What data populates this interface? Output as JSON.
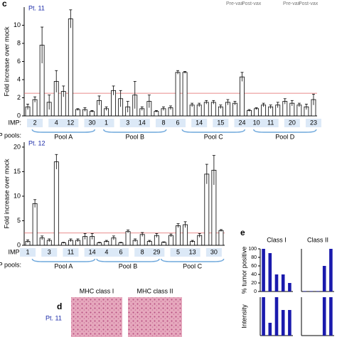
{
  "panel_labels": [
    "c",
    "d",
    "e"
  ],
  "vax_labels": [
    "Pre-vax",
    "Post-vax"
  ],
  "image_panel": {
    "titles": [
      "MHC class I",
      "MHC class II"
    ],
    "row_label": "Pt. 11"
  },
  "chart_data": [
    {
      "type": "bar",
      "title": "Pt. 11",
      "y_label": "Fold increase over mock",
      "row_labels": [
        "IMP:",
        "ASP pools:"
      ],
      "color": "#ffffff",
      "edge": "#000000",
      "ref_line": 2.5,
      "ref_color": "#e06666",
      "group_color": "#dce9f7",
      "ylim": [
        0,
        12
      ],
      "yticks": [
        0,
        2,
        4,
        6,
        8,
        10
      ],
      "values": [
        1.0,
        1.8,
        7.8,
        1.5,
        3.8,
        2.7,
        10.7,
        0.7,
        0.7,
        0.5,
        1.7,
        0.8,
        2.8,
        1.9,
        1.0,
        2.3,
        0.8,
        1.6,
        0.5,
        0.8,
        0.9,
        4.8,
        4.8,
        1.2,
        1.2,
        1.5,
        1.5,
        1.0,
        1.5,
        1.4,
        4.3,
        0.6,
        0.8,
        1.2,
        1.0,
        1.2,
        1.6,
        1.4,
        1.2,
        1.0,
        1.8
      ],
      "errors": [
        0.3,
        0.3,
        2.0,
        0.8,
        1.2,
        0.6,
        1.0,
        0.1,
        0.2,
        0.1,
        0.5,
        0.2,
        0.5,
        0.9,
        0.6,
        1.5,
        0.2,
        0.7,
        0.1,
        0.2,
        0.2,
        0.2,
        0.1,
        0.2,
        0.2,
        0.2,
        0.2,
        0.2,
        0.3,
        0.2,
        0.5,
        0.1,
        0.1,
        0.2,
        0.2,
        0.3,
        0.3,
        0.3,
        0.2,
        0.3,
        0.6
      ],
      "categories": [
        null,
        "2",
        null,
        null,
        "4",
        null,
        "12",
        null,
        null,
        "30",
        null,
        "1",
        null,
        null,
        "3",
        null,
        "14",
        null,
        null,
        "8",
        null,
        "6",
        null,
        null,
        "14",
        null,
        null,
        "15",
        null,
        null,
        "24",
        null,
        "10",
        null,
        "11",
        null,
        null,
        "20",
        null,
        null,
        "23"
      ],
      "pools": [
        null,
        null,
        null,
        null,
        null,
        "Pool A",
        null,
        null,
        null,
        null,
        null,
        null,
        null,
        null,
        null,
        "Pool B",
        null,
        null,
        null,
        null,
        null,
        null,
        null,
        null,
        null,
        null,
        "Pool C",
        null,
        null,
        null,
        null,
        null,
        null,
        null,
        null,
        null,
        "Pool D",
        null,
        null,
        null,
        null
      ]
    },
    {
      "type": "bar",
      "title": "Pt. 12",
      "y_label": "Fold increase over mock",
      "row_labels": [
        "IMP:",
        "ASP pools:"
      ],
      "color": "#ffffff",
      "edge": "#000000",
      "ref_line": 2.5,
      "ref_color": "#e06666",
      "group_color": "#dce9f7",
      "ylim": [
        0,
        21
      ],
      "yticks": [
        0,
        5,
        10,
        15,
        20
      ],
      "values": [
        0.8,
        8.5,
        1.5,
        1.0,
        17.0,
        0.5,
        1.0,
        1.0,
        1.8,
        1.8,
        0.5,
        0.8,
        1.5,
        0.5,
        2.8,
        1.0,
        2.2,
        0.8,
        2.0,
        0.6,
        2.0,
        4.0,
        4.2,
        0.8,
        2.0,
        14.5,
        15.3,
        3.0
      ],
      "errors": [
        0.3,
        0.8,
        0.4,
        0.3,
        1.5,
        0.1,
        0.3,
        0.3,
        0.6,
        0.6,
        0.1,
        0.2,
        0.4,
        0.1,
        0.3,
        0.3,
        0.4,
        0.2,
        0.4,
        0.1,
        0.3,
        0.4,
        0.6,
        0.2,
        0.4,
        2.0,
        3.0,
        0.2
      ],
      "categories": [
        "1",
        null,
        null,
        "3",
        null,
        null,
        "11",
        null,
        null,
        "14",
        null,
        "4",
        null,
        "6",
        null,
        null,
        "8",
        null,
        "29",
        null,
        null,
        "5",
        null,
        "13",
        null,
        null,
        "30",
        null
      ],
      "pools": [
        null,
        null,
        null,
        null,
        null,
        "Pool A",
        null,
        null,
        null,
        null,
        null,
        null,
        null,
        null,
        "Pool B",
        null,
        null,
        null,
        null,
        null,
        null,
        null,
        null,
        "Pool C",
        null,
        null,
        null,
        null
      ]
    },
    {
      "type": "bar",
      "title": "Class I",
      "y_label": "% tumor positive",
      "color": "#1a1aad",
      "ylim": [
        0,
        100
      ],
      "yticks": [
        0,
        20,
        40,
        60,
        80,
        100
      ],
      "values": [
        100,
        90,
        40,
        40,
        20
      ]
    },
    {
      "type": "bar",
      "title": "Class II",
      "color": "#1a1aad",
      "ylim": [
        0,
        100
      ],
      "values": [
        1,
        1,
        1,
        60,
        100
      ]
    },
    {
      "type": "bar",
      "y_label": "Intensity",
      "color": "#1a1aad",
      "ylim": [
        0,
        3
      ],
      "values": [
        3,
        1,
        3,
        2,
        2
      ]
    },
    {
      "type": "bar",
      "color": "#1a1aad",
      "ylim": [
        0,
        3
      ],
      "values": [
        0,
        0,
        0,
        3,
        3
      ]
    }
  ]
}
